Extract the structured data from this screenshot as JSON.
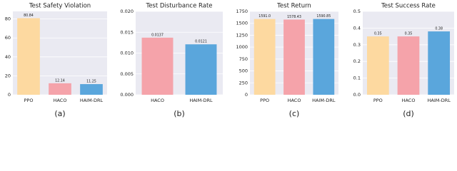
{
  "chart_data": [
    {
      "type": "bar",
      "title": "Test Safety Violation",
      "caption": "(a)",
      "categories": [
        "PPO",
        "HACO",
        "HAIM-DRL"
      ],
      "values": [
        80.84,
        12.14,
        11.25
      ],
      "colors": [
        "#fdd9a0",
        "#f5a3aa",
        "#5aa6dc"
      ],
      "ylim": [
        0,
        88
      ],
      "yticks": [
        0,
        20,
        40,
        60,
        80
      ],
      "grid": true
    },
    {
      "type": "bar",
      "title": "Test Disturbance Rate",
      "caption": "(b)",
      "categories": [
        "HACO",
        "HAIM-DRL"
      ],
      "values": [
        0.0137,
        0.0121
      ],
      "colors": [
        "#f5a3aa",
        "#5aa6dc"
      ],
      "ylim": [
        0,
        0.02
      ],
      "yticks": [
        {
          "value": 0,
          "label": "0.000"
        },
        {
          "value": 0.005,
          "label": "0.005"
        },
        {
          "value": 0.01,
          "label": "0.010"
        },
        {
          "value": 0.015,
          "label": "0.015"
        },
        {
          "value": 0.02,
          "label": "0.020"
        }
      ],
      "grid": true
    },
    {
      "type": "bar",
      "title": "Test Return",
      "caption": "(c)",
      "categories": [
        "PPO",
        "HACO",
        "HAIM-DRL"
      ],
      "values": [
        1591.0,
        1578.43,
        1590.85
      ],
      "value_labels": [
        "1591.0",
        "1578.43",
        "1590.85"
      ],
      "colors": [
        "#fdd9a0",
        "#f5a3aa",
        "#5aa6dc"
      ],
      "ylim": [
        0,
        1750
      ],
      "yticks": [
        0,
        250,
        500,
        750,
        1000,
        1250,
        1500,
        1750
      ],
      "grid": true
    },
    {
      "type": "bar",
      "title": "Test Success Rate",
      "caption": "(d)",
      "categories": [
        "PPO",
        "HACO",
        "HAIM-DRL"
      ],
      "values": [
        0.35,
        0.35,
        0.38
      ],
      "colors": [
        "#fdd9a0",
        "#f5a3aa",
        "#5aa6dc"
      ],
      "ylim": [
        0,
        0.5
      ],
      "yticks": [
        {
          "value": 0,
          "label": "0.0"
        },
        {
          "value": 0.1,
          "label": "0.1"
        },
        {
          "value": 0.2,
          "label": "0.2"
        },
        {
          "value": 0.3,
          "label": "0.3"
        },
        {
          "value": 0.4,
          "label": "0.4"
        },
        {
          "value": 0.5,
          "label": "0.5"
        }
      ],
      "grid": true
    }
  ]
}
